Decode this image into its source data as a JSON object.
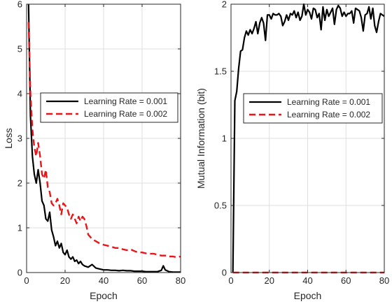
{
  "chart_data": [
    {
      "type": "line",
      "title": "",
      "xlabel": "Epoch",
      "ylabel": "Loss",
      "xlim": [
        0,
        80
      ],
      "ylim": [
        0,
        6
      ],
      "xticks": [
        0,
        20,
        40,
        60,
        80
      ],
      "yticks": [
        0,
        1,
        2,
        3,
        4,
        5,
        6
      ],
      "grid": true,
      "legend_position": "center-right",
      "series": [
        {
          "name": "Learning Rate = 0.001",
          "color": "#000000",
          "line_style": "solid",
          "x": [
            1,
            2,
            3,
            4,
            5,
            6,
            7,
            8,
            9,
            10,
            11,
            12,
            13,
            14,
            15,
            16,
            17,
            18,
            19,
            20,
            21,
            22,
            23,
            24,
            25,
            26,
            27,
            28,
            29,
            30,
            32,
            34,
            36,
            38,
            40,
            42,
            44,
            46,
            48,
            50,
            52,
            54,
            56,
            58,
            60,
            62,
            64,
            66,
            68,
            70,
            71,
            72,
            74,
            76,
            78,
            80
          ],
          "y": [
            6.0,
            3.5,
            2.6,
            2.2,
            2.0,
            2.3,
            2.0,
            1.6,
            1.5,
            1.2,
            1.15,
            1.35,
            0.95,
            0.8,
            0.6,
            0.7,
            0.55,
            0.65,
            0.45,
            0.4,
            0.5,
            0.35,
            0.3,
            0.35,
            0.25,
            0.28,
            0.2,
            0.25,
            0.18,
            0.15,
            0.12,
            0.18,
            0.1,
            0.08,
            0.06,
            0.06,
            0.05,
            0.05,
            0.04,
            0.05,
            0.04,
            0.04,
            0.03,
            0.03,
            0.03,
            0.02,
            0.02,
            0.02,
            0.02,
            0.05,
            0.15,
            0.06,
            0.02,
            0.01,
            0.01,
            0.01
          ]
        },
        {
          "name": "Learning Rate = 0.002",
          "color": "#e8161b",
          "line_style": "dashed",
          "x": [
            1,
            2,
            3,
            4,
            5,
            6,
            7,
            8,
            9,
            10,
            11,
            12,
            13,
            14,
            15,
            16,
            17,
            18,
            19,
            20,
            21,
            22,
            23,
            24,
            25,
            26,
            27,
            28,
            29,
            30,
            31,
            32,
            34,
            36,
            38,
            40,
            42,
            44,
            46,
            48,
            50,
            52,
            54,
            56,
            58,
            60,
            62,
            64,
            66,
            68,
            70,
            72,
            74,
            76,
            78,
            80
          ],
          "y": [
            5.6,
            4.0,
            3.2,
            2.8,
            2.6,
            2.9,
            2.6,
            2.2,
            2.1,
            2.3,
            1.9,
            1.8,
            1.55,
            1.5,
            1.55,
            1.65,
            1.5,
            1.3,
            1.55,
            1.5,
            1.45,
            1.3,
            1.2,
            1.3,
            1.2,
            1.1,
            1.25,
            1.15,
            1.25,
            1.2,
            1.05,
            0.85,
            0.75,
            0.7,
            0.65,
            0.62,
            0.6,
            0.58,
            0.55,
            0.55,
            0.52,
            0.5,
            0.52,
            0.48,
            0.45,
            0.45,
            0.43,
            0.42,
            0.42,
            0.4,
            0.38,
            0.38,
            0.36,
            0.36,
            0.34,
            0.36
          ]
        }
      ]
    },
    {
      "type": "line",
      "title": "",
      "xlabel": "Epoch",
      "ylabel": "Mutual Information (bit)",
      "xlim": [
        0,
        80
      ],
      "ylim": [
        0,
        2
      ],
      "xticks": [
        0,
        20,
        40,
        60,
        80
      ],
      "yticks": [
        0,
        0.5,
        1,
        1.5,
        2
      ],
      "grid": true,
      "legend_position": "center-right",
      "series": [
        {
          "name": "Learning Rate = 0.001",
          "color": "#000000",
          "line_style": "solid",
          "x": [
            1,
            2,
            3,
            4,
            5,
            6,
            7,
            8,
            9,
            10,
            11,
            12,
            13,
            14,
            15,
            16,
            17,
            18,
            19,
            20,
            21,
            22,
            23,
            24,
            25,
            26,
            27,
            28,
            29,
            30,
            31,
            32,
            33,
            34,
            35,
            36,
            37,
            38,
            39,
            40,
            41,
            42,
            43,
            44,
            45,
            46,
            47,
            48,
            49,
            50,
            51,
            52,
            53,
            54,
            55,
            56,
            57,
            58,
            59,
            60,
            61,
            62,
            63,
            64,
            65,
            66,
            67,
            68,
            69,
            70,
            71,
            72,
            73,
            74,
            75,
            76,
            77,
            78,
            79,
            80
          ],
          "y": [
            0.0,
            1.28,
            1.35,
            1.52,
            1.65,
            1.66,
            1.75,
            1.8,
            1.77,
            1.81,
            1.78,
            1.82,
            1.87,
            1.78,
            1.86,
            1.9,
            1.86,
            1.73,
            1.92,
            1.92,
            1.89,
            1.93,
            1.92,
            1.92,
            1.93,
            1.91,
            1.84,
            1.87,
            1.92,
            1.88,
            1.93,
            1.92,
            1.95,
            1.9,
            1.94,
            1.88,
            1.91,
            2.0,
            1.92,
            1.96,
            1.94,
            1.89,
            1.97,
            1.96,
            1.9,
            1.93,
            1.81,
            1.98,
            1.88,
            1.96,
            1.91,
            1.94,
            1.97,
            1.85,
            1.96,
            1.99,
            1.97,
            1.91,
            1.94,
            1.91,
            1.93,
            1.93,
            1.95,
            1.86,
            1.97,
            1.96,
            1.95,
            1.9,
            1.8,
            1.92,
            1.93,
            1.98,
            1.89,
            1.97,
            1.84,
            1.79,
            1.87,
            1.93,
            1.92,
            1.91
          ]
        },
        {
          "name": "Learning Rate = 0.002",
          "color": "#e8161b",
          "line_style": "dashed",
          "x": [
            1,
            80
          ],
          "y": [
            0.0,
            0.0
          ]
        }
      ]
    }
  ]
}
